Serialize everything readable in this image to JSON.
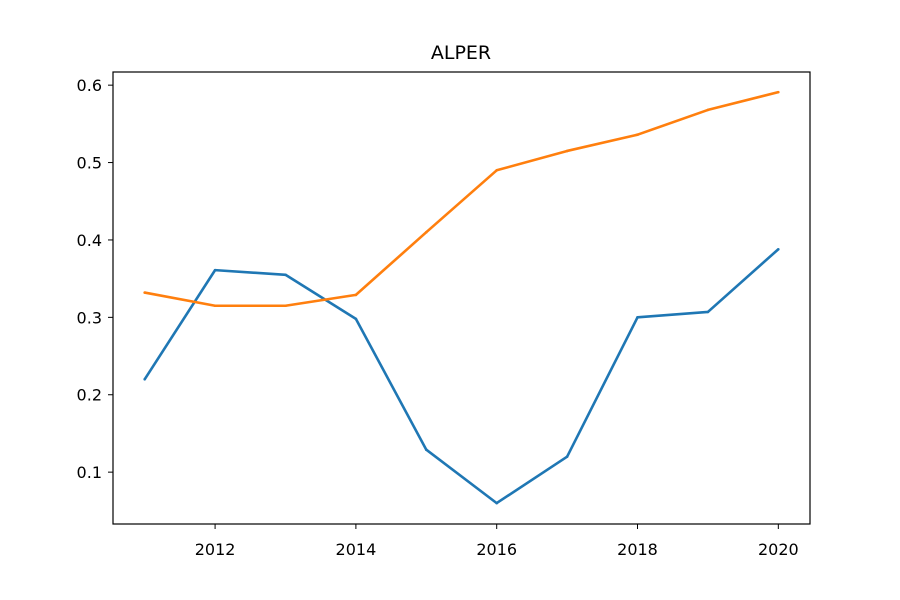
{
  "chart_data": {
    "type": "line",
    "title": "ALPER",
    "xlabel": "",
    "ylabel": "",
    "x": [
      2011,
      2012,
      2013,
      2014,
      2015,
      2016,
      2017,
      2018,
      2019,
      2020
    ],
    "xlim": [
      2010.55,
      2020.45
    ],
    "ylim": [
      0.033,
      0.617
    ],
    "xticks": [
      2012,
      2014,
      2016,
      2018,
      2020
    ],
    "yticks": [
      0.1,
      0.2,
      0.3,
      0.4,
      0.5,
      0.6
    ],
    "grid": false,
    "series": [
      {
        "color": "#1f77b4",
        "values": [
          0.22,
          0.361,
          0.355,
          0.298,
          0.129,
          0.06,
          0.12,
          0.3,
          0.307,
          0.388
        ]
      },
      {
        "color": "#ff7f0e",
        "values": [
          0.332,
          0.315,
          0.315,
          0.329,
          0.41,
          0.49,
          0.515,
          0.536,
          0.568,
          0.591
        ]
      }
    ]
  }
}
